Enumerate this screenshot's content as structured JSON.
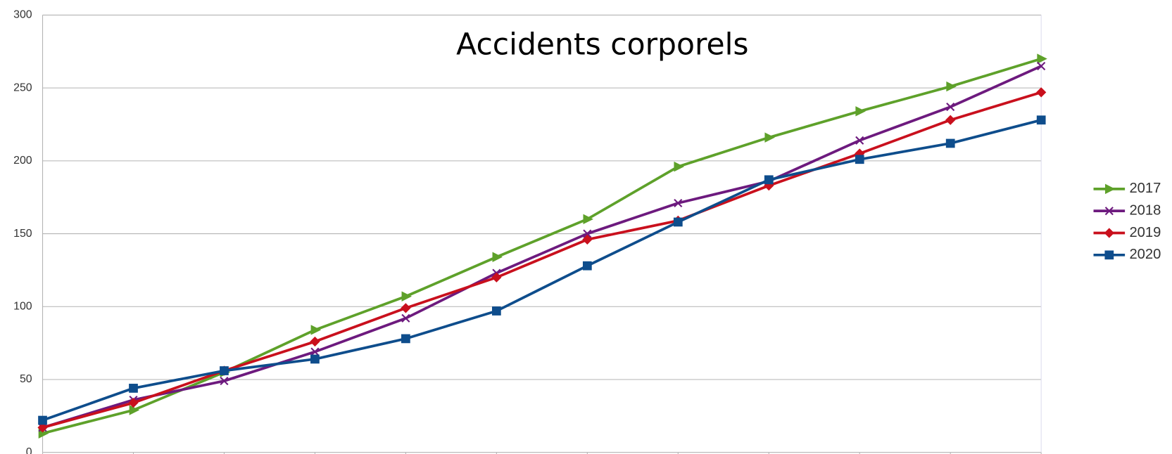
{
  "chart_data": {
    "type": "line",
    "title": "Accidents corporels",
    "categories": [
      null,
      null,
      null,
      null,
      null,
      null,
      null,
      null,
      null,
      null,
      null,
      null
    ],
    "ylim": [
      0,
      300
    ],
    "yticks": [
      0,
      50,
      100,
      150,
      200,
      250,
      300
    ],
    "grid": true,
    "legend": "right",
    "series": [
      {
        "name": "2017",
        "color": "#5ea12a",
        "marker": "triangle",
        "values": [
          13,
          29,
          55,
          84,
          107,
          134,
          160,
          196,
          216,
          234,
          251,
          270
        ]
      },
      {
        "name": "2018",
        "color": "#6d1a7e",
        "marker": "x",
        "values": [
          17,
          36,
          49,
          69,
          92,
          123,
          150,
          171,
          186,
          214,
          237,
          265
        ]
      },
      {
        "name": "2019",
        "color": "#c9101d",
        "marker": "diamond",
        "values": [
          17,
          34,
          56,
          76,
          99,
          120,
          146,
          159,
          183,
          205,
          228,
          247
        ]
      },
      {
        "name": "2020",
        "color": "#0e4d8c",
        "marker": "square",
        "values": [
          22,
          44,
          56,
          64,
          78,
          97,
          128,
          158,
          187,
          201,
          212,
          228
        ]
      }
    ]
  }
}
